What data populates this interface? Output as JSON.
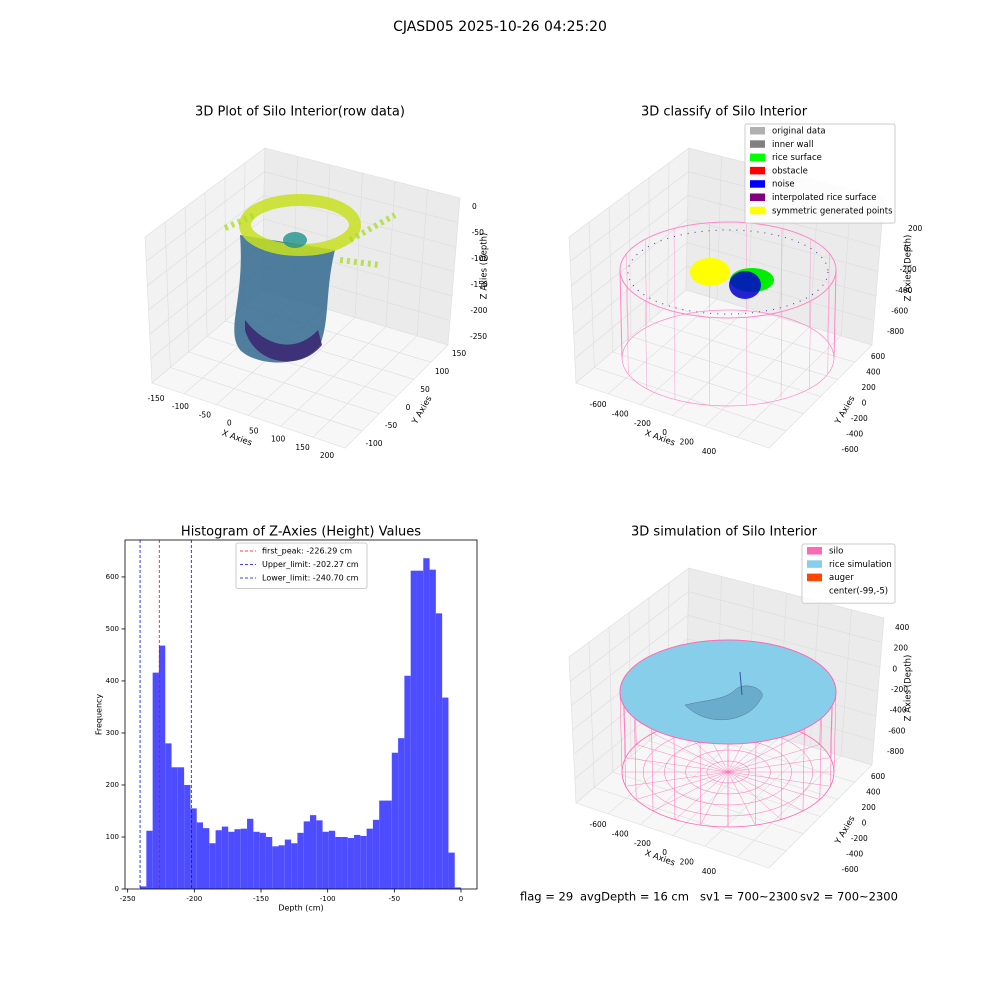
{
  "title": "CJASD05 2025-10-26 04:25:20",
  "footer": [
    "flag = 29",
    "avgDepth = 16 cm",
    "sv1 = 700~2300",
    "sv2 = 700~2300"
  ],
  "chart_data": [
    {
      "type": "scatter3d",
      "title": "3D Plot of Silo Interior(row data)",
      "xlabel": "X Axies",
      "ylabel": "Y Axies",
      "zlabel": "Z Axies (Depth)",
      "xticks": [
        -150,
        -100,
        -50,
        0,
        50,
        100,
        150,
        200
      ],
      "yticks": [
        -100,
        -50,
        0,
        50,
        100,
        150
      ],
      "zticks": [
        0,
        -50,
        -100,
        -150,
        -200,
        -250
      ]
    },
    {
      "type": "scatter3d",
      "title": "3D classify of Silo Interior",
      "xlabel": "X Axies",
      "ylabel": "Y Axies",
      "zlabel": "Z Axies (Depth)",
      "xticks": [
        -600,
        -400,
        -200,
        0,
        200,
        400
      ],
      "yticks": [
        -600,
        -400,
        -200,
        0,
        200,
        400,
        600
      ],
      "zticks": [
        200,
        0,
        -200,
        -400,
        -600,
        -800
      ],
      "legend": [
        {
          "name": "original data",
          "color": "#b0b0b0"
        },
        {
          "name": "inner wall",
          "color": "#808080"
        },
        {
          "name": "rice surface",
          "color": "#00ff00"
        },
        {
          "name": "obstacle",
          "color": "#ff0000"
        },
        {
          "name": "noise",
          "color": "#0000ff"
        },
        {
          "name": "interpolated rice surface",
          "color": "#800080"
        },
        {
          "name": "symmetric generated points",
          "color": "#ffff00"
        }
      ]
    },
    {
      "type": "histogram",
      "title": "Histogram of Z-Axies (Height) Values",
      "xlabel": "Depth (cm)",
      "ylabel": "Frequency",
      "color": "#4d4dff",
      "bins": [
        -240.7,
        -235.98,
        -231.26,
        -226.54,
        -221.82,
        -217.1,
        -212.38,
        -207.66,
        -202.94,
        -198.22,
        -193.5,
        -188.78,
        -184.06,
        -179.34,
        -174.62,
        -169.9,
        -165.18,
        -160.46,
        -155.74,
        -151.02,
        -146.3,
        -141.58,
        -136.86,
        -132.14,
        -127.42,
        -122.7,
        -117.98,
        -113.26,
        -108.54,
        -103.82,
        -99.1,
        -94.38,
        -89.66,
        -84.94,
        -80.22,
        -75.5,
        -70.78,
        -66.06,
        -61.34,
        -56.62,
        -51.9,
        -47.18,
        -42.46,
        -37.74,
        -33.02,
        -28.3,
        -23.58,
        -18.86,
        -14.14,
        -9.42,
        -4.7,
        0.02
      ],
      "values": [
        5,
        112,
        416,
        468,
        280,
        234,
        234,
        200,
        155,
        128,
        117,
        88,
        113,
        120,
        110,
        115,
        116,
        135,
        110,
        108,
        100,
        82,
        84,
        95,
        88,
        108,
        130,
        142,
        132,
        110,
        112,
        100,
        100,
        98,
        104,
        102,
        116,
        133,
        170,
        170,
        262,
        290,
        410,
        612,
        612,
        636,
        614,
        530,
        368,
        70,
        3
      ],
      "lines": [
        {
          "label": "first_peak: -226.29 cm",
          "value": -226.29,
          "color": "#ff0000"
        },
        {
          "label": "Upper_limit: -202.27 cm",
          "value": -202.27,
          "color": "#0000ff"
        },
        {
          "label": "Lower_limit: -240.70 cm",
          "value": -240.7,
          "color": "#0000ff"
        }
      ],
      "xlim": [
        -252,
        12
      ],
      "ylim": [
        0,
        671
      ],
      "xticks": [
        -250,
        -200,
        -150,
        -100,
        -50,
        0
      ],
      "yticks": [
        0,
        100,
        200,
        300,
        400,
        500,
        600
      ]
    },
    {
      "type": "surface3d",
      "title": "3D simulation of Silo Interior",
      "xlabel": "X Axies",
      "ylabel": "Y Axies",
      "zlabel": "Z Axies (Depth)",
      "xticks": [
        -600,
        -400,
        -200,
        0,
        200,
        400
      ],
      "yticks": [
        -600,
        -400,
        -200,
        0,
        200,
        400,
        600
      ],
      "zticks": [
        400,
        200,
        0,
        -200,
        -400,
        -600,
        -800
      ],
      "legend": [
        {
          "name": "silo",
          "color": "#ff69b4"
        },
        {
          "name": "rice simulation",
          "color": "#87ceeb"
        },
        {
          "name": "auger",
          "color": "#ff4500"
        },
        {
          "name": "center(-99,-5)",
          "color": "#ffffff"
        }
      ]
    }
  ]
}
